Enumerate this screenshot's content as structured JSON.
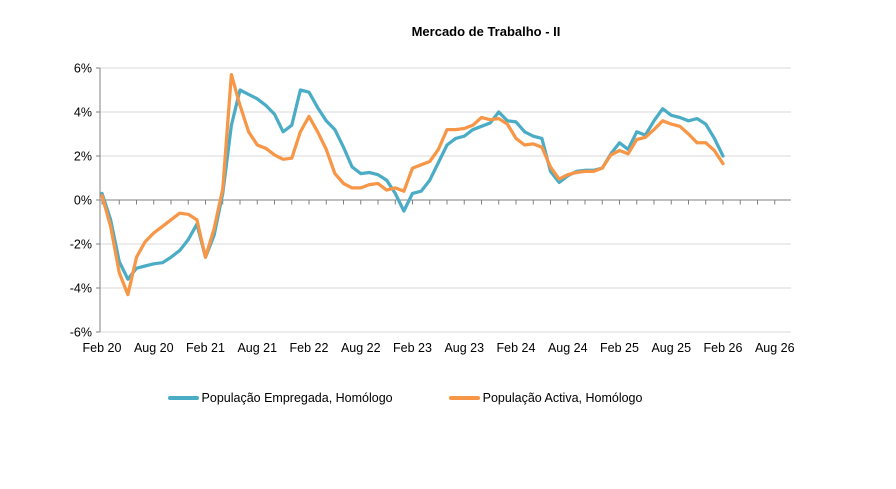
{
  "title": "Mercado de Trabalho - II",
  "chart_data": {
    "type": "line",
    "title": "Mercado de Trabalho - II",
    "xlabel": "",
    "ylabel": "",
    "ylim": [
      -6,
      6
    ],
    "y_tick_values": [
      6,
      4,
      2,
      0,
      -2,
      -4,
      -6
    ],
    "y_tick_labels": [
      "6%",
      "4%",
      "2%",
      "0%",
      "-2%",
      "-4%",
      "-6%"
    ],
    "x_tick_labels": [
      "Feb 20",
      "Aug 20",
      "Feb 21",
      "Aug 21",
      "Feb 22",
      "Aug 22",
      "Feb 23",
      "Aug 23",
      "Feb 24",
      "Aug 24",
      "Feb 25",
      "Aug 25",
      "Feb 26",
      "Aug 26"
    ],
    "grid": true,
    "gridline_color": "#d9d9d9",
    "axis_color": "#808080",
    "legend_position": "bottom",
    "months": [
      "Feb 20",
      "Mar 20",
      "Apr 20",
      "May 20",
      "Jun 20",
      "Jul 20",
      "Aug 20",
      "Sep 20",
      "Oct 20",
      "Nov 20",
      "Dec 20",
      "Jan 21",
      "Feb 21",
      "Mar 21",
      "Apr 21",
      "May 21",
      "Jun 21",
      "Jul 21",
      "Aug 21",
      "Sep 21",
      "Oct 21",
      "Nov 21",
      "Dec 21",
      "Jan 22",
      "Feb 22",
      "Mar 22",
      "Apr 22",
      "May 22",
      "Jun 22",
      "Jul 22",
      "Aug 22",
      "Sep 22",
      "Oct 22",
      "Nov 22",
      "Dec 22",
      "Jan 23",
      "Feb 23",
      "Mar 23",
      "Apr 23",
      "May 23",
      "Jun 23",
      "Jul 23",
      "Aug 23",
      "Sep 23",
      "Oct 23",
      "Nov 23",
      "Dec 23",
      "Jan 24",
      "Feb 24",
      "Mar 24",
      "Apr 24",
      "May 24",
      "Jun 24",
      "Jul 24",
      "Aug 24",
      "Sep 24",
      "Oct 24",
      "Nov 24",
      "Dec 24",
      "Jan 25",
      "Feb 25",
      "Mar 25",
      "Apr 25",
      "May 25",
      "Jun 25",
      "Jul 25",
      "Aug 25",
      "Sep 25",
      "Oct 25",
      "Nov 25",
      "Dec 25",
      "Jan 26",
      "Feb 26"
    ],
    "series": [
      {
        "name": "População Empregada, Homólogo",
        "color": "#4BACC6",
        "values": [
          0.3,
          -0.9,
          -2.8,
          -3.6,
          -3.1,
          -3.0,
          -2.9,
          -2.85,
          -2.6,
          -2.3,
          -1.8,
          -1.1,
          -2.6,
          -1.6,
          0.3,
          3.4,
          5.0,
          4.8,
          4.6,
          4.3,
          3.9,
          3.1,
          3.4,
          5.0,
          4.9,
          4.2,
          3.6,
          3.2,
          2.4,
          1.5,
          1.2,
          1.25,
          1.15,
          0.9,
          0.3,
          -0.5,
          0.3,
          0.4,
          0.9,
          1.7,
          2.5,
          2.8,
          2.9,
          3.2,
          3.35,
          3.5,
          4.0,
          3.6,
          3.55,
          3.1,
          2.9,
          2.8,
          1.3,
          0.8,
          1.1,
          1.3,
          1.35,
          1.35,
          1.45,
          2.1,
          2.6,
          2.3,
          3.1,
          2.95,
          3.6,
          4.15,
          3.85,
          3.75,
          3.6,
          3.7,
          3.45,
          2.8,
          2.0
        ]
      },
      {
        "name": "População Activa, Homólogo",
        "color": "#F79646",
        "values": [
          0.2,
          -1.2,
          -3.3,
          -4.3,
          -2.6,
          -1.9,
          -1.5,
          -1.2,
          -0.9,
          -0.6,
          -0.65,
          -0.9,
          -2.6,
          -1.3,
          0.5,
          5.7,
          4.3,
          3.1,
          2.5,
          2.35,
          2.05,
          1.85,
          1.9,
          3.1,
          3.8,
          3.1,
          2.3,
          1.2,
          0.75,
          0.55,
          0.55,
          0.7,
          0.75,
          0.45,
          0.55,
          0.4,
          1.45,
          1.6,
          1.75,
          2.3,
          3.2,
          3.2,
          3.25,
          3.4,
          3.75,
          3.65,
          3.7,
          3.45,
          2.8,
          2.5,
          2.55,
          2.4,
          1.5,
          0.95,
          1.15,
          1.25,
          1.3,
          1.3,
          1.45,
          2.05,
          2.25,
          2.1,
          2.75,
          2.85,
          3.2,
          3.6,
          3.45,
          3.35,
          3.0,
          2.6,
          2.6,
          2.25,
          1.65
        ]
      }
    ]
  },
  "legend": {
    "items": [
      {
        "label": "População Empregada, Homólogo",
        "color": "#4BACC6"
      },
      {
        "label": "População Activa, Homólogo",
        "color": "#F79646"
      }
    ]
  }
}
